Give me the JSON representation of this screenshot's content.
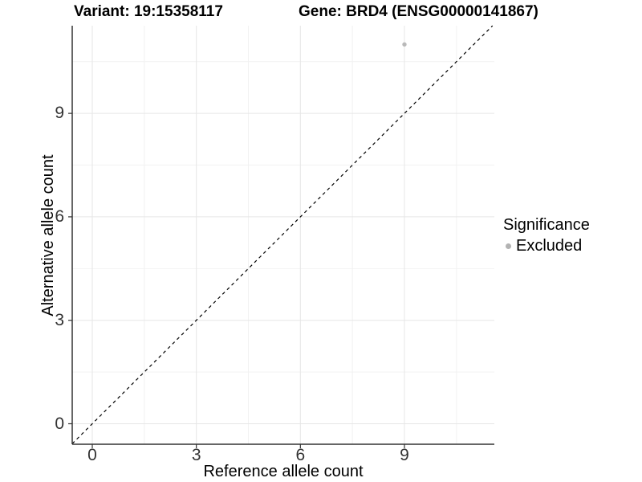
{
  "titles": {
    "variant": "Variant: 19:15358117",
    "gene": "Gene: BRD4 (ENSG00000141867)"
  },
  "x_axis": {
    "label": "Reference allele count",
    "tick_labels": [
      "0",
      "3",
      "6",
      "9"
    ]
  },
  "y_axis": {
    "label": "Alternative allele count",
    "tick_labels": [
      "0",
      "3",
      "6",
      "9"
    ]
  },
  "legend": {
    "title": "Significance",
    "items": [
      {
        "label": "Excluded",
        "color": "#b3b3b3"
      }
    ]
  },
  "chart_data": {
    "type": "scatter",
    "title": "Variant: 19:15358117 | Gene: BRD4 (ENSG00000141867)",
    "xlabel": "Reference allele count",
    "ylabel": "Alternative allele count",
    "x_ticks": [
      0,
      3,
      6,
      9
    ],
    "y_ticks": [
      0,
      3,
      6,
      9
    ],
    "x_minor_ticks": [
      1.5,
      4.5,
      7.5,
      10.5
    ],
    "y_minor_ticks": [
      1.5,
      4.5,
      7.5,
      10.5
    ],
    "xlim": [
      -0.58,
      11.6
    ],
    "ylim": [
      -0.59,
      11.54
    ],
    "grid": "major and minor gridlines, light gray on white panel",
    "legend_position": "right",
    "series": [
      {
        "name": "Excluded",
        "color": "#b9b9b9",
        "points": [
          [
            9,
            11
          ]
        ]
      }
    ],
    "reference_line": {
      "slope": 1,
      "intercept": 0,
      "style": "dashed",
      "color": "#000000"
    }
  },
  "colors": {
    "axis_line": "#333333",
    "major_grid": "#e6e6e6",
    "minor_grid": "#f2f2f2",
    "tick_text": "#333333",
    "point": "#b9b9b9",
    "legend_point": "#b3b3b3"
  }
}
